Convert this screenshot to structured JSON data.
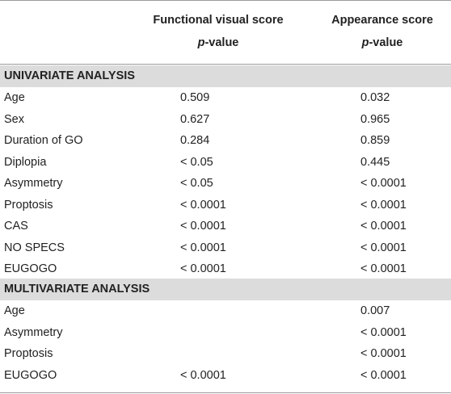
{
  "header": {
    "col1_title": "Functional visual score",
    "col2_title": "Appearance score",
    "pvalue_italic": "p",
    "pvalue_rest": "-value"
  },
  "sections": [
    {
      "title": "UNIVARIATE ANALYSIS",
      "rows": [
        {
          "label": "Age",
          "fvs": "0.509",
          "as": "0.032"
        },
        {
          "label": "Sex",
          "fvs": "0.627",
          "as": "0.965"
        },
        {
          "label": "Duration of GO",
          "fvs": "0.284",
          "as": "0.859"
        },
        {
          "label": "Diplopia",
          "fvs": "< 0.05",
          "as": "0.445"
        },
        {
          "label": "Asymmetry",
          "fvs": "< 0.05",
          "as": "< 0.0001"
        },
        {
          "label": "Proptosis",
          "fvs": "< 0.0001",
          "as": "< 0.0001"
        },
        {
          "label": "CAS",
          "fvs": "< 0.0001",
          "as": "< 0.0001"
        },
        {
          "label": "NO SPECS",
          "fvs": "< 0.0001",
          "as": "< 0.0001"
        },
        {
          "label": "EUGOGO",
          "fvs": "< 0.0001",
          "as": "< 0.0001"
        }
      ]
    },
    {
      "title": "MULTIVARIATE ANALYSIS",
      "rows": [
        {
          "label": "Age",
          "fvs": "",
          "as": "0.007"
        },
        {
          "label": "Asymmetry",
          "fvs": "",
          "as": "< 0.0001"
        },
        {
          "label": "Proptosis",
          "fvs": "",
          "as": "< 0.0001"
        },
        {
          "label": "EUGOGO",
          "fvs": "< 0.0001",
          "as": "< 0.0001"
        }
      ]
    }
  ]
}
